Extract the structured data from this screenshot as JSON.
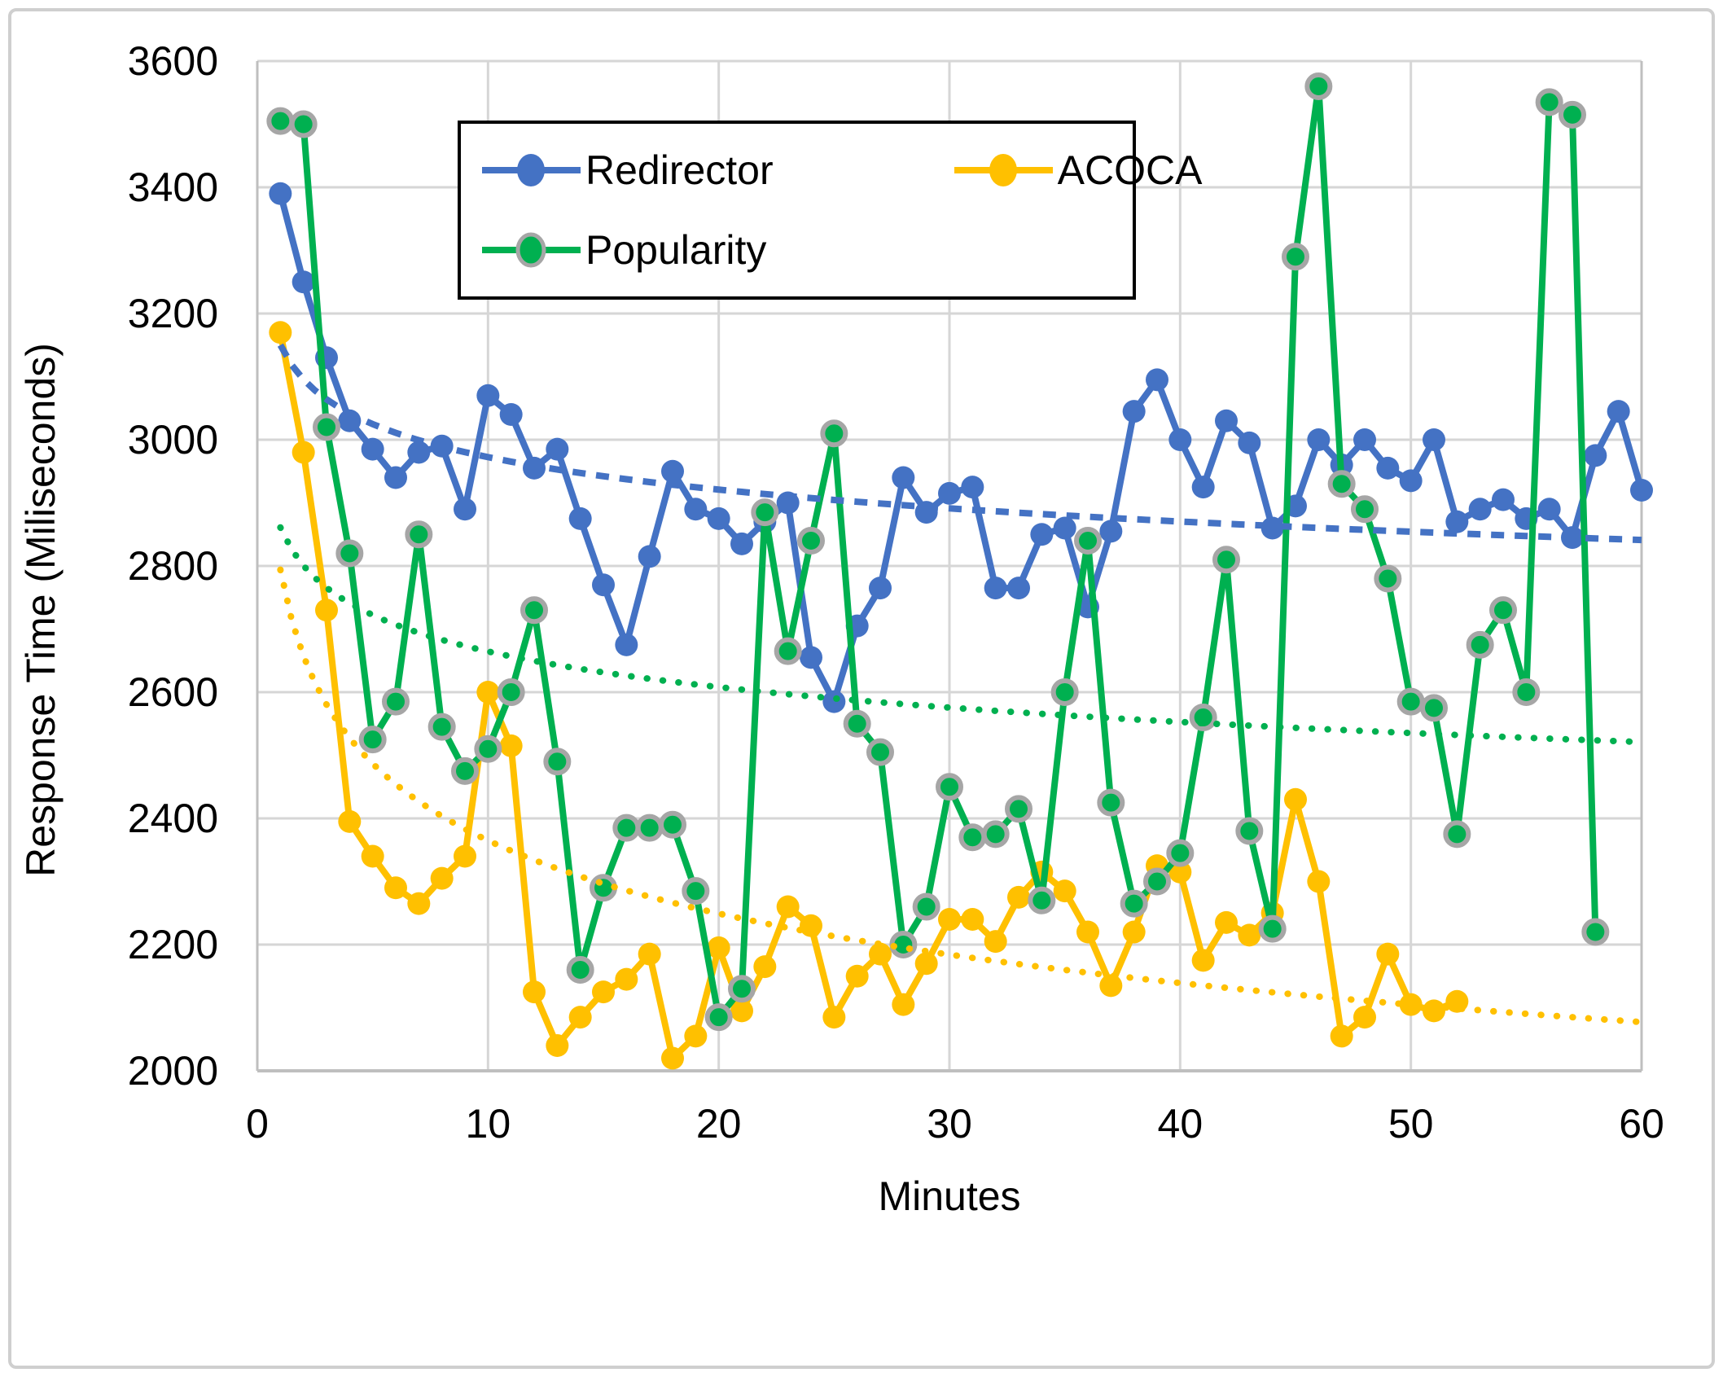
{
  "figure": {
    "background": "#ffffff",
    "border_color": "#cfcfcf"
  },
  "legend": {
    "items": [
      {
        "label": "Redirector",
        "color": "#4472C4"
      },
      {
        "label": "ACOCA",
        "color": "#FFC000"
      },
      {
        "label": "Popularity",
        "color": "#00B050"
      }
    ]
  },
  "chart_data": {
    "type": "line",
    "title": "",
    "xlabel": "Minutes",
    "ylabel": "Response Time (Miliseconds)",
    "xlim": [
      0,
      60
    ],
    "ylim": [
      2000,
      3600
    ],
    "x_ticks": [
      0,
      10,
      20,
      30,
      40,
      50,
      60
    ],
    "y_ticks": [
      2000,
      2200,
      2400,
      2600,
      2800,
      3000,
      3200,
      3400,
      3600
    ],
    "grid": true,
    "grid_color": "#d6d6d6",
    "axis_text_color": "#000000",
    "legend_position": "top-left-box",
    "marker_ring_color": "#A6A6A6",
    "series": [
      {
        "name": "Redirector",
        "color": "#4472C4",
        "marker_outline": null,
        "x_start": 1,
        "values": [
          3390,
          3250,
          3130,
          3030,
          2985,
          2940,
          2980,
          2990,
          2890,
          3070,
          3040,
          2955,
          2985,
          2875,
          2770,
          2675,
          2815,
          2950,
          2890,
          2875,
          2835,
          2870,
          2900,
          2655,
          2585,
          2705,
          2765,
          2940,
          2885,
          2915,
          2925,
          2765,
          2765,
          2850,
          2860,
          2735,
          2855,
          3045,
          3095,
          3000,
          2925,
          3030,
          2995,
          2860,
          2895,
          3000,
          2960,
          3000,
          2955,
          2935,
          3000,
          2870,
          2890,
          2905,
          2875,
          2890,
          2845,
          2975,
          3045,
          2920
        ]
      },
      {
        "name": "ACOCA",
        "color": "#FFC000",
        "marker_outline": null,
        "x_start": 1,
        "values": [
          3170,
          2980,
          2730,
          2395,
          2340,
          2290,
          2265,
          2305,
          2340,
          2600,
          2515,
          2125,
          2040,
          2085,
          2125,
          2145,
          2185,
          2020,
          2055,
          2195,
          2095,
          2165,
          2260,
          2230,
          2085,
          2150,
          2185,
          2105,
          2170,
          2240,
          2240,
          2205,
          2275,
          2315,
          2285,
          2220,
          2135,
          2220,
          2325,
          2315,
          2175,
          2235,
          2215,
          2250,
          2430,
          2300,
          2055,
          2085,
          2185,
          2105,
          2095,
          2110
        ]
      },
      {
        "name": "Popularity",
        "color": "#00B050",
        "marker_outline": "#A6A6A6",
        "x_start": 1,
        "values": [
          3505,
          3500,
          3020,
          2820,
          2525,
          2585,
          2850,
          2545,
          2475,
          2510,
          2600,
          2730,
          2490,
          2160,
          2290,
          2385,
          2385,
          2390,
          2285,
          2085,
          2130,
          2885,
          2665,
          2840,
          3010,
          2550,
          2505,
          2200,
          2260,
          2450,
          2370,
          2375,
          2415,
          2270,
          2600,
          2840,
          2425,
          2265,
          2300,
          2345,
          2560,
          2810,
          2380,
          2225,
          3290,
          3560,
          2930,
          2890,
          2780,
          2585,
          2575,
          2375,
          2675,
          2730,
          2600,
          3535,
          3515,
          2220
        ]
      }
    ],
    "trendlines": [
      {
        "series": "Redirector",
        "type": "power",
        "a": 3150,
        "b": -0.0252,
        "color": "#4472C4",
        "style": "dash",
        "x_range": [
          1,
          60
        ]
      },
      {
        "series": "ACOCA",
        "type": "power",
        "a": 2794,
        "b": -0.0724,
        "color": "#FFC000",
        "style": "dot",
        "x_range": [
          1,
          60
        ]
      },
      {
        "series": "Popularity",
        "type": "power",
        "a": 2861,
        "b": -0.0309,
        "color": "#00B050",
        "style": "dot",
        "x_range": [
          1,
          60
        ]
      }
    ]
  }
}
